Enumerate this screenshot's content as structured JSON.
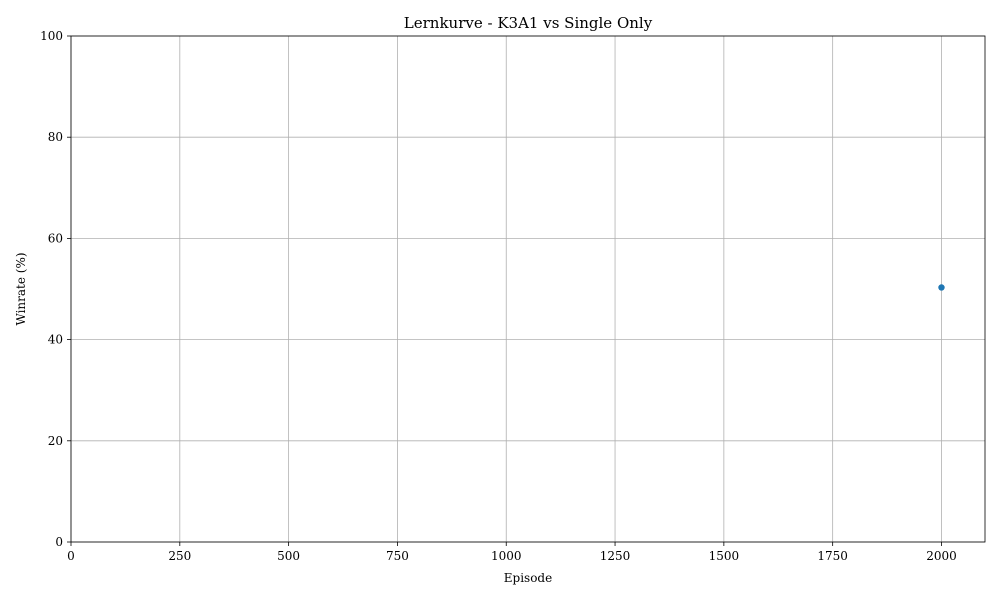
{
  "chart_data": {
    "type": "scatter",
    "title": "Lernkurve - K3A1 vs Single Only",
    "xlabel": "Episode",
    "ylabel": "Winrate (%)",
    "xlim": [
      0,
      2100
    ],
    "ylim": [
      0,
      100
    ],
    "xticks": [
      0,
      250,
      500,
      750,
      1000,
      1250,
      1500,
      1750,
      2000
    ],
    "yticks": [
      0,
      20,
      40,
      60,
      80,
      100
    ],
    "grid": true,
    "series": [
      {
        "color": "#1f77b4",
        "x": [
          2000
        ],
        "y": [
          50.3
        ]
      }
    ]
  }
}
